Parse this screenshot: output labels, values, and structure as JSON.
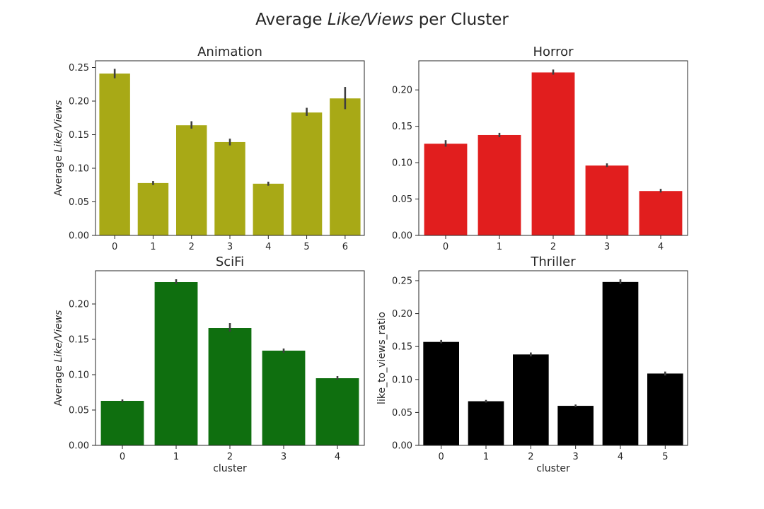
{
  "figure": {
    "title_prefix": "Average ",
    "title_italic": "Like/Views",
    "title_suffix": " per Cluster"
  },
  "chart_data": [
    {
      "type": "bar",
      "title": "Animation",
      "xlabel": "",
      "ylabel_prefix": "Average ",
      "ylabel_italic": "Like/Views",
      "ylabel": "",
      "color": "#a8a916",
      "categories": [
        "0",
        "1",
        "2",
        "3",
        "4",
        "5",
        "6"
      ],
      "values": [
        0.241,
        0.078,
        0.164,
        0.139,
        0.077,
        0.183,
        0.204
      ],
      "error_low": [
        0.234,
        0.075,
        0.159,
        0.134,
        0.074,
        0.178,
        0.188
      ],
      "error_high": [
        0.248,
        0.081,
        0.17,
        0.144,
        0.08,
        0.19,
        0.221
      ],
      "ylim": [
        0,
        0.26
      ],
      "yticks": [
        0.0,
        0.05,
        0.1,
        0.15,
        0.2,
        0.25
      ],
      "ytick_labels": [
        "0.00",
        "0.05",
        "0.10",
        "0.15",
        "0.20",
        "0.25"
      ]
    },
    {
      "type": "bar",
      "title": "Horror",
      "xlabel": "",
      "ylabel_prefix": "",
      "ylabel_italic": "",
      "ylabel": "",
      "color": "#e11e1e",
      "categories": [
        "0",
        "1",
        "2",
        "3",
        "4"
      ],
      "values": [
        0.126,
        0.138,
        0.224,
        0.096,
        0.061
      ],
      "error_low": [
        0.122,
        0.135,
        0.221,
        0.094,
        0.059
      ],
      "error_high": [
        0.131,
        0.141,
        0.228,
        0.099,
        0.064
      ],
      "ylim": [
        0,
        0.24
      ],
      "yticks": [
        0.0,
        0.05,
        0.1,
        0.15,
        0.2
      ],
      "ytick_labels": [
        "0.00",
        "0.05",
        "0.10",
        "0.15",
        "0.20"
      ]
    },
    {
      "type": "bar",
      "title": "SciFi",
      "xlabel": "cluster",
      "ylabel_prefix": "Average ",
      "ylabel_italic": "Like/Views",
      "ylabel": "",
      "color": "#0f6f0f",
      "categories": [
        "0",
        "1",
        "2",
        "3",
        "4"
      ],
      "values": [
        0.063,
        0.231,
        0.166,
        0.134,
        0.095
      ],
      "error_low": [
        0.061,
        0.228,
        0.161,
        0.131,
        0.093
      ],
      "error_high": [
        0.065,
        0.235,
        0.173,
        0.137,
        0.098
      ],
      "ylim": [
        0,
        0.247
      ],
      "yticks": [
        0.0,
        0.05,
        0.1,
        0.15,
        0.2
      ],
      "ytick_labels": [
        "0.00",
        "0.05",
        "0.10",
        "0.15",
        "0.20"
      ]
    },
    {
      "type": "bar",
      "title": "Thriller",
      "xlabel": "cluster",
      "ylabel_prefix": "",
      "ylabel_italic": "",
      "ylabel": "like_to_views_ratio",
      "color": "#000000",
      "categories": [
        "0",
        "1",
        "2",
        "3",
        "4",
        "5"
      ],
      "values": [
        0.157,
        0.067,
        0.138,
        0.06,
        0.248,
        0.109
      ],
      "error_low": [
        0.155,
        0.065,
        0.135,
        0.058,
        0.245,
        0.106
      ],
      "error_high": [
        0.16,
        0.069,
        0.141,
        0.062,
        0.252,
        0.112
      ],
      "ylim": [
        0,
        0.265
      ],
      "yticks": [
        0.0,
        0.05,
        0.1,
        0.15,
        0.2,
        0.25
      ],
      "ytick_labels": [
        "0.00",
        "0.05",
        "0.10",
        "0.15",
        "0.20",
        "0.25"
      ]
    }
  ]
}
